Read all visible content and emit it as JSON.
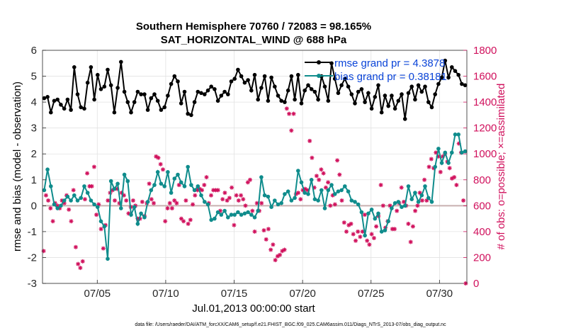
{
  "chart_data": {
    "type": "line",
    "title": "Southern Hemisphere 70760 / 72083 = 98.165%",
    "subtitle": "SAT_HORIZONTAL_WIND @ 688 hPa",
    "xlabel": "Jul.01,2013 00:00:00 start",
    "ylabel": "rmse and bias (model - observation)",
    "ylabel_right": "# of obs: o=possible; ×=assimilated",
    "footer": "data file: /Users/raeder/DAI/ATM_forcXX/CAM6_setup/f.e21.FHIST_BGC.f09_025.CAM6assim.011/Diags_NTrS_2013-07/obs_diag_output.nc",
    "xlim": [
      1,
      32
    ],
    "ylim": [
      -3,
      6
    ],
    "ylim_right": [
      0,
      1800
    ],
    "xticks": [
      5,
      10,
      15,
      20,
      25,
      30
    ],
    "xtick_labels": [
      "07/05",
      "07/10",
      "07/15",
      "07/20",
      "07/25",
      "07/30"
    ],
    "yticks": [
      -3,
      -2,
      -1,
      0,
      1,
      2,
      3,
      4,
      5,
      6
    ],
    "yticks_right": [
      0,
      200,
      400,
      600,
      800,
      1000,
      1200,
      1400,
      1600,
      1800
    ],
    "legend": [
      "rmse grand pr = 4.3878",
      "bias grand pr = 0.38181"
    ],
    "colors": {
      "rmse": "#000000",
      "bias": "#0f8c8c",
      "obs": "#d0105c",
      "zero": "#c8b0b0",
      "grid": "#e2e2e2"
    },
    "series": [
      {
        "name": "rmse",
        "values": [
          4.15,
          4.2,
          3.6,
          4.05,
          4.1,
          3.9,
          3.75,
          4.1,
          3.7,
          5.35,
          4.3,
          3.8,
          3.75,
          4.75,
          5.35,
          4.1,
          5.05,
          4.5,
          4.6,
          5.25,
          4.65,
          3.6,
          4.55,
          5.55,
          4.4,
          4.0,
          3.6,
          4.0,
          4.4,
          4.3,
          4.3,
          3.7,
          4.15,
          4.3,
          4.05,
          3.7,
          3.8,
          4.25,
          4.7,
          5.0,
          4.8,
          3.95,
          4.4,
          3.55,
          3.5,
          4.0,
          4.4,
          4.35,
          4.3,
          4.45,
          4.6,
          4.5,
          4.05,
          4.25,
          4.4,
          4.3,
          4.8,
          4.9,
          5.25,
          5.0,
          4.75,
          4.85,
          4.45,
          5.05,
          4.1,
          4.55,
          5.0,
          4.05,
          4.95,
          4.6,
          4.25,
          4.05,
          4.0,
          4.45,
          5.0,
          4.1,
          5.05,
          3.95,
          4.45,
          4.65,
          4.5,
          4.4,
          4.1,
          5.0,
          4.6,
          4.05,
          5.5,
          4.9,
          4.35,
          4.65,
          4.9,
          4.6,
          4.3,
          3.95,
          4.4,
          4.5,
          4.0,
          4.35,
          3.75,
          4.2,
          4.65,
          3.6,
          4.25,
          3.85,
          4.25,
          3.75,
          4.05,
          4.3,
          3.35,
          4.35,
          4.6,
          4.1,
          4.65,
          4.4,
          4.6,
          4.0,
          3.8,
          4.3,
          4.7,
          4.95,
          5.6,
          4.95,
          5.35,
          5.2,
          5.05,
          4.7,
          4.65
        ]
      },
      {
        "name": "bias",
        "values": [
          0.6,
          1.4,
          0.75,
          0.05,
          -0.1,
          0.0,
          0.2,
          0.35,
          0.2,
          0.4,
          0.2,
          0.3,
          0.75,
          0.5,
          0.2,
          0.05,
          -0.05,
          -0.6,
          -0.8,
          -2.05,
          0.95,
          0.65,
          0.85,
          -0.1,
          1.2,
          0.95,
          -0.35,
          -0.05,
          -0.7,
          -0.3,
          -0.45,
          0.15,
          0.6,
          0.8,
          1.3,
          0.85,
          0.75,
          1.3,
          0.5,
          1.05,
          1.2,
          0.9,
          0.75,
          1.5,
          0.8,
          0.6,
          0.75,
          0.4,
          0.15,
          0.05,
          -0.55,
          -0.5,
          -0.25,
          -0.35,
          -0.2,
          -0.45,
          -0.35,
          -0.35,
          -0.25,
          -0.35,
          -0.3,
          -0.25,
          -0.35,
          -0.45,
          -0.2,
          1.1,
          0.4,
          0.35,
          -0.05,
          0.2,
          0.05,
          0.1,
          0.45,
          0.55,
          0.2,
          0.3,
          1.35,
          0.9,
          0.5,
          0.45,
          1.0,
          0.25,
          0.2,
          0.6,
          -0.1,
          0.6,
          0.8,
          0.45,
          0.55,
          0.6,
          0.75,
          0.55,
          0.2,
          0.15,
          0.05,
          -0.25,
          -1.15,
          -0.3,
          -0.15,
          -0.5,
          -0.3,
          -1.0,
          -0.95,
          -0.6,
          -0.1,
          0.1,
          0.15,
          -0.05,
          0.0,
          0.75,
          0.25,
          0.5,
          0.15,
          0.4,
          0.75,
          0.3,
          0.15,
          1.5,
          2.2,
          1.65,
          2.05,
          1.65,
          2.05,
          2.75,
          2.75,
          2.05,
          2.1
        ]
      },
      {
        "name": "obs_assimilated",
        "values": [
          250,
          680,
          640,
          580,
          480,
          620,
          600,
          580,
          640,
          620,
          680,
          570,
          480,
          720,
          280,
          150,
          120,
          170,
          650,
          850,
          750,
          750,
          900,
          530,
          610,
          420,
          270,
          450,
          640,
          700,
          720,
          640,
          730,
          620,
          700,
          680,
          640,
          540,
          590,
          640,
          600,
          500,
          500,
          630,
          520,
          620,
          770,
          650,
          620,
          980,
          970,
          920,
          880,
          480,
          580,
          620,
          580,
          640,
          620,
          760,
          500,
          480,
          640,
          460,
          490,
          610,
          680,
          720,
          730,
          720,
          760,
          820,
          620,
          680,
          720,
          720,
          720,
          560,
          650,
          700,
          640,
          660,
          740,
          450,
          680,
          640,
          680,
          650,
          600,
          780,
          800,
          560,
          400,
          620,
          560,
          620,
          410,
          340,
          420,
          260,
          300,
          180,
          210,
          220,
          250,
          260,
          1350,
          1310,
          1180,
          1310,
          690,
          700,
          650,
          720,
          730,
          720,
          1100,
          970,
          740,
          830,
          800,
          880,
          850,
          740,
          780,
          600,
          680,
          610,
          950,
          840,
          640,
          470,
          400,
          450,
          460,
          380,
          330,
          400,
          360,
          400,
          530,
          330,
          300,
          380,
          350,
          440,
          520,
          760,
          600,
          430,
          480,
          600,
          420,
          420,
          560,
          620,
          740,
          630,
          600,
          460,
          320,
          440,
          560,
          600,
          700,
          640,
          800,
          640,
          900,
          960,
          890,
          1010,
          980,
          860,
          980,
          1000,
          940,
          890,
          810,
          820,
          760,
          1080,
          1010,
          640,
          0
        ]
      }
    ]
  }
}
